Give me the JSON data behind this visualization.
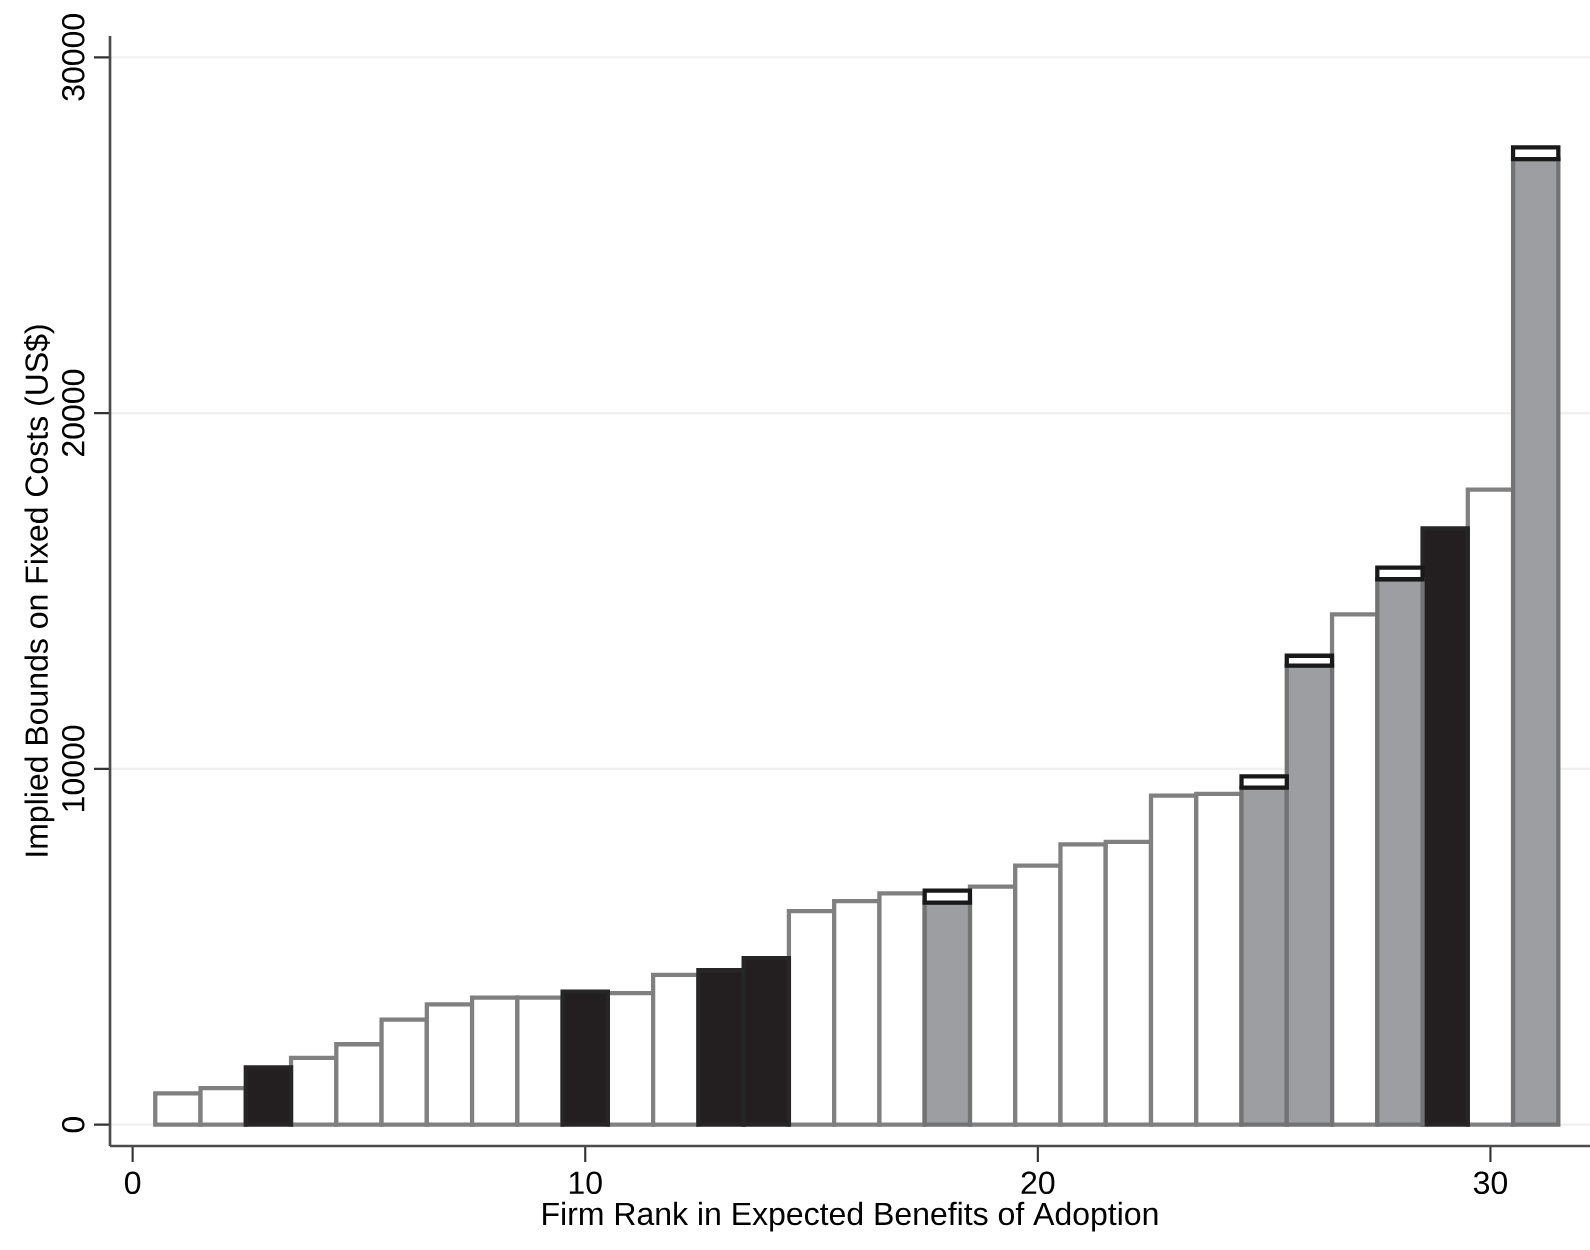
{
  "chart_data": {
    "type": "bar",
    "xlabel": "Firm Rank in Expected Benefits of Adoption",
    "ylabel": "Implied Bounds on Fixed Costs (US$)",
    "x": [
      1,
      2,
      3,
      4,
      5,
      6,
      7,
      8,
      9,
      10,
      11,
      12,
      13,
      14,
      15,
      16,
      17,
      18,
      19,
      20,
      21,
      22,
      23,
      24,
      25,
      26,
      27,
      28,
      29,
      30,
      31
    ],
    "series": [
      {
        "color": "#ffffff",
        "values": [
          880,
          1030,
          null,
          1880,
          2260,
          2950,
          3380,
          3570,
          3570,
          null,
          3700,
          4210,
          null,
          null,
          6000,
          6280,
          6500,
          null,
          6690,
          7280,
          7880,
          7950,
          9250,
          9300,
          null,
          null,
          14340,
          null,
          null,
          17850,
          null
        ]
      },
      {
        "color": "#231f20",
        "values": [
          null,
          null,
          1610,
          null,
          null,
          null,
          null,
          null,
          null,
          3740,
          null,
          null,
          4340,
          4680,
          null,
          null,
          null,
          null,
          null,
          null,
          null,
          null,
          null,
          null,
          null,
          null,
          null,
          null,
          16760,
          null,
          null
        ]
      },
      {
        "color": "#9d9ea2",
        "values": [
          null,
          null,
          null,
          null,
          null,
          null,
          null,
          null,
          null,
          null,
          null,
          null,
          null,
          null,
          null,
          null,
          null,
          6240,
          null,
          null,
          null,
          null,
          null,
          null,
          9470,
          12900,
          null,
          15330,
          null,
          null,
          27140
        ]
      },
      {
        "color": "#ffffff",
        "values": [
          null,
          null,
          null,
          null,
          null,
          null,
          null,
          null,
          null,
          null,
          null,
          null,
          null,
          null,
          null,
          null,
          null,
          340,
          null,
          null,
          null,
          null,
          null,
          null,
          320,
          280,
          null,
          330,
          null,
          null,
          330
        ]
      }
    ],
    "stacked": true,
    "xlim": [
      -0.5,
      32.2
    ],
    "ylim": [
      -600,
      30600
    ],
    "xticks": [
      0,
      10,
      20,
      30
    ],
    "yticks": [
      0,
      10000,
      20000,
      30000
    ],
    "grid": "y"
  }
}
